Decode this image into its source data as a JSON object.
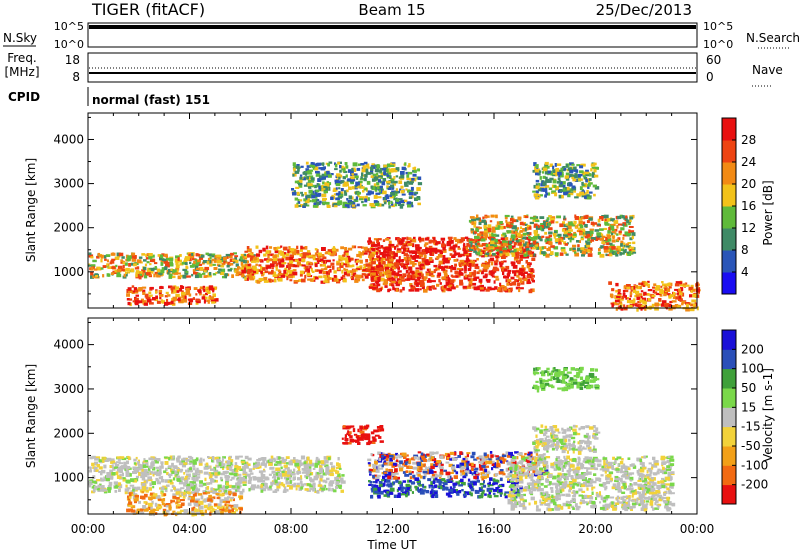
{
  "header": {
    "station": "TIGER (fitACF)",
    "beam": "Beam 15",
    "date": "25/Dec/2013"
  },
  "noise_panel": {
    "left_label": "N.Sky",
    "left_top": "10^5",
    "left_bottom": "10^0",
    "right_label": "N.Search",
    "right_top": "10^5",
    "right_bottom": "10^0"
  },
  "freq_panel": {
    "label_line1": "Freq.",
    "label_line2": "[MHz]",
    "left_top": "18",
    "left_bottom": "8",
    "right_label": "Nave",
    "right_top": "60",
    "right_bottom": "0"
  },
  "cpid": {
    "label": "CPID",
    "value": "normal (fast) 151"
  },
  "chart_data": [
    {
      "type": "heatmap",
      "name": "power",
      "ylabel": "Slant Range [km]",
      "yticks": [
        "4000",
        "3000",
        "2000",
        "1000"
      ],
      "ylim": [
        180,
        4600
      ],
      "colorbar_label": "Power [dB]",
      "colorbar_ticks": [
        "28",
        "24",
        "20",
        "16",
        "12",
        "8",
        "4"
      ],
      "colorbar_range": [
        0,
        32
      ],
      "colors": [
        "#1a0df2",
        "#2a55b8",
        "#3f8a66",
        "#5fba3a",
        "#f2c21a",
        "#f28a14",
        "#ee4412",
        "#e81010"
      ],
      "features": [
        {
          "start_h": 0.0,
          "end_h": 6.5,
          "range_low_km": 900,
          "range_high_km": 1450,
          "level": "mid"
        },
        {
          "start_h": 1.5,
          "end_h": 5.0,
          "range_low_km": 300,
          "range_high_km": 700,
          "level": "high"
        },
        {
          "start_h": 6.0,
          "end_h": 12.0,
          "range_low_km": 800,
          "range_high_km": 1600,
          "level": "high"
        },
        {
          "start_h": 11.0,
          "end_h": 17.5,
          "range_low_km": 600,
          "range_high_km": 1800,
          "level": "peak"
        },
        {
          "start_h": 15.0,
          "end_h": 21.5,
          "range_low_km": 1400,
          "range_high_km": 2300,
          "level": "mid"
        },
        {
          "start_h": 20.5,
          "end_h": 24.0,
          "range_low_km": 180,
          "range_high_km": 800,
          "level": "high"
        },
        {
          "start_h": 8.0,
          "end_h": 13.0,
          "range_low_km": 2500,
          "range_high_km": 3500,
          "level": "low"
        },
        {
          "start_h": 17.5,
          "end_h": 20.0,
          "range_low_km": 2700,
          "range_high_km": 3500,
          "level": "low"
        }
      ]
    },
    {
      "type": "heatmap",
      "name": "velocity",
      "ylabel": "Slant Range [km]",
      "yticks": [
        "4000",
        "3000",
        "2000",
        "1000"
      ],
      "ylim": [
        180,
        4600
      ],
      "xlabel": "Time UT",
      "xticks": [
        "00:00",
        "04:00",
        "08:00",
        "12:00",
        "16:00",
        "20:00",
        "00:00"
      ],
      "xlim": [
        0,
        24
      ],
      "colorbar_label": "Velocity [m s-1]",
      "colorbar_ticks": [
        "200",
        "100",
        "50",
        "15",
        "-15",
        "-50",
        "-100",
        "-200"
      ],
      "colorbar_range": [
        -250,
        250
      ],
      "colors": [
        "#e81010",
        "#f26a12",
        "#f2a018",
        "#f2d23a",
        "#bfbfbf",
        "#7ad84a",
        "#3fa03a",
        "#2a4fb8",
        "#1a10d8"
      ],
      "features": [
        {
          "start_h": 0.0,
          "end_h": 10.0,
          "range_low_km": 700,
          "range_high_km": 1500,
          "level": "ground"
        },
        {
          "start_h": 1.5,
          "end_h": 6.0,
          "range_low_km": 200,
          "range_high_km": 700,
          "level": "away"
        },
        {
          "start_h": 11.0,
          "end_h": 17.0,
          "range_low_km": 600,
          "range_high_km": 1000,
          "level": "toward_strong"
        },
        {
          "start_h": 11.0,
          "end_h": 18.0,
          "range_low_km": 1000,
          "range_high_km": 1600,
          "level": "mixed"
        },
        {
          "start_h": 16.5,
          "end_h": 23.0,
          "range_low_km": 300,
          "range_high_km": 1500,
          "level": "ground"
        },
        {
          "start_h": 17.5,
          "end_h": 20.0,
          "range_low_km": 1600,
          "range_high_km": 2200,
          "level": "ground"
        },
        {
          "start_h": 10.0,
          "end_h": 11.5,
          "range_low_km": 1800,
          "range_high_km": 2200,
          "level": "away_strong"
        },
        {
          "start_h": 17.5,
          "end_h": 20.0,
          "range_low_km": 3000,
          "range_high_km": 3500,
          "level": "toward"
        }
      ]
    }
  ]
}
